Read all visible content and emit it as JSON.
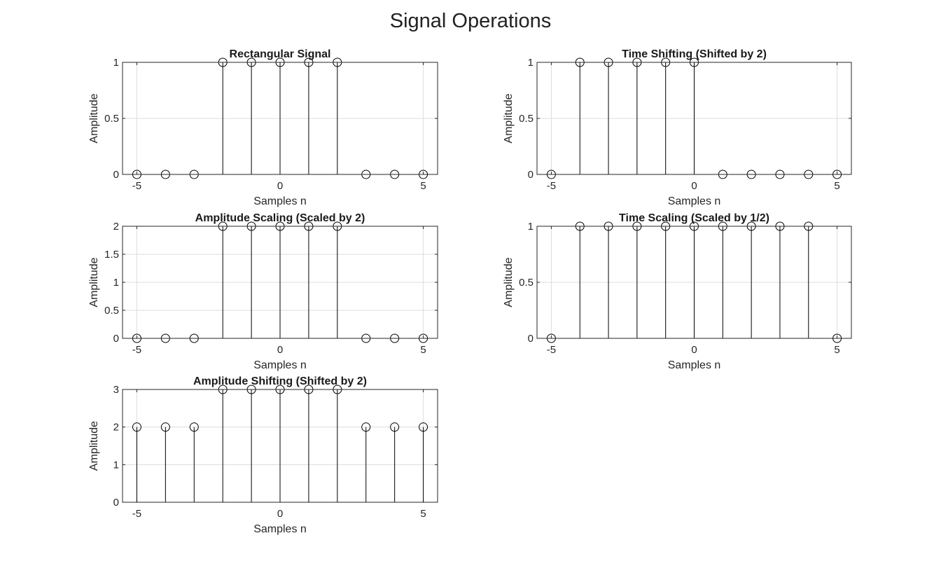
{
  "figure": {
    "title": "Signal Operations"
  },
  "colors": {
    "stem": "#000000",
    "grid": "#dcdcdc",
    "axis": "#262626",
    "text": "#262626"
  },
  "chart_data": [
    {
      "type": "stem",
      "title": "Rectangular Signal",
      "xlabel": "Samples n",
      "ylabel": "Amplitude",
      "xlim": [
        -5.5,
        5.5
      ],
      "ylim": [
        0,
        1
      ],
      "xticks": [
        "-5",
        "0",
        "5"
      ],
      "xtick_values": [
        -5,
        0,
        5
      ],
      "yticks": [
        "0",
        "0.5",
        "1"
      ],
      "ytick_values": [
        0,
        0.5,
        1
      ],
      "grid": true,
      "x": [
        -5,
        -4,
        -3,
        -2,
        -1,
        0,
        1,
        2,
        3,
        4,
        5
      ],
      "values": [
        0,
        0,
        0,
        1,
        1,
        1,
        1,
        1,
        0,
        0,
        0
      ]
    },
    {
      "type": "stem",
      "title": "Time Shifting (Shifted by 2)",
      "xlabel": "Samples n",
      "ylabel": "Amplitude",
      "xlim": [
        -5.5,
        5.5
      ],
      "ylim": [
        0,
        1
      ],
      "xticks": [
        "-5",
        "0",
        "5"
      ],
      "xtick_values": [
        -5,
        0,
        5
      ],
      "yticks": [
        "0",
        "0.5",
        "1"
      ],
      "ytick_values": [
        0,
        0.5,
        1
      ],
      "grid": true,
      "x": [
        -5,
        -4,
        -3,
        -2,
        -1,
        0,
        1,
        2,
        3,
        4,
        5
      ],
      "values": [
        0,
        1,
        1,
        1,
        1,
        1,
        0,
        0,
        0,
        0,
        0
      ]
    },
    {
      "type": "stem",
      "title": "Amplitude Scaling (Scaled by 2)",
      "xlabel": "Samples n",
      "ylabel": "Amplitude",
      "xlim": [
        -5.5,
        5.5
      ],
      "ylim": [
        0,
        2
      ],
      "xticks": [
        "-5",
        "0",
        "5"
      ],
      "xtick_values": [
        -5,
        0,
        5
      ],
      "yticks": [
        "0",
        "0.5",
        "1",
        "1.5",
        "2"
      ],
      "ytick_values": [
        0,
        0.5,
        1,
        1.5,
        2
      ],
      "grid": true,
      "x": [
        -5,
        -4,
        -3,
        -2,
        -1,
        0,
        1,
        2,
        3,
        4,
        5
      ],
      "values": [
        0,
        0,
        0,
        2,
        2,
        2,
        2,
        2,
        0,
        0,
        0
      ]
    },
    {
      "type": "stem",
      "title": "Time Scaling (Scaled by 1/2)",
      "xlabel": "Samples n",
      "ylabel": "Amplitude",
      "xlim": [
        -5.5,
        5.5
      ],
      "ylim": [
        0,
        1
      ],
      "xticks": [
        "-5",
        "0",
        "5"
      ],
      "xtick_values": [
        -5,
        0,
        5
      ],
      "yticks": [
        "0",
        "0.5",
        "1"
      ],
      "ytick_values": [
        0,
        0.5,
        1
      ],
      "grid": true,
      "x": [
        -5,
        -4,
        -3,
        -2,
        -1,
        0,
        1,
        2,
        3,
        4,
        5
      ],
      "values": [
        0,
        1,
        1,
        1,
        1,
        1,
        1,
        1,
        1,
        1,
        0
      ]
    },
    {
      "type": "stem",
      "title": "Amplitude Shifting (Shifted by 2)",
      "xlabel": "Samples n",
      "ylabel": "Amplitude",
      "xlim": [
        -5.5,
        5.5
      ],
      "ylim": [
        0,
        3
      ],
      "xticks": [
        "-5",
        "0",
        "5"
      ],
      "xtick_values": [
        -5,
        0,
        5
      ],
      "yticks": [
        "0",
        "1",
        "2",
        "3"
      ],
      "ytick_values": [
        0,
        1,
        2,
        3
      ],
      "grid": true,
      "x": [
        -5,
        -4,
        -3,
        -2,
        -1,
        0,
        1,
        2,
        3,
        4,
        5
      ],
      "values": [
        2,
        2,
        2,
        3,
        3,
        3,
        3,
        3,
        2,
        2,
        2
      ]
    }
  ]
}
